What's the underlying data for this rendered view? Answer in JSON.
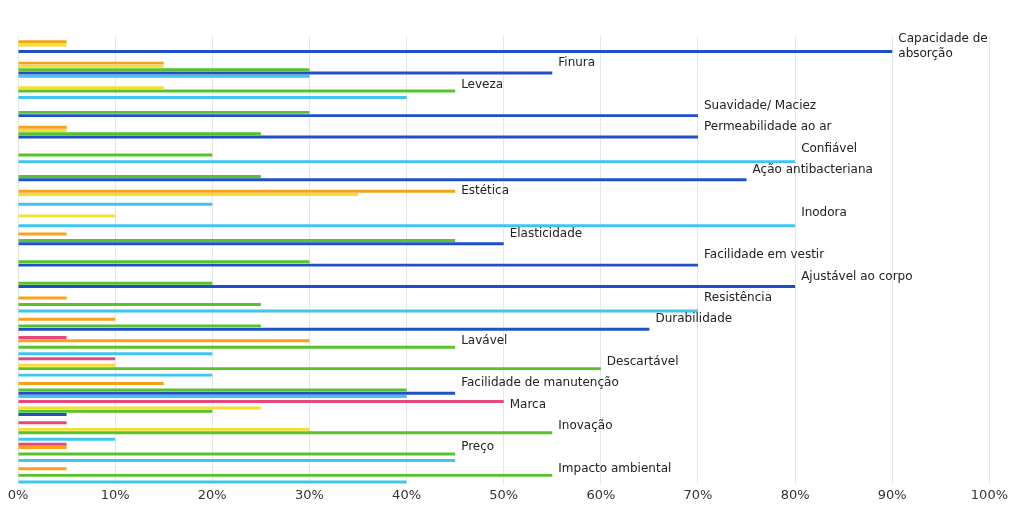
{
  "chart_data": {
    "type": "bar",
    "orientation": "horizontal",
    "categories": [
      "Capacidade de absorção",
      "Finura",
      "Leveza",
      "Suavidade/ Maciez",
      "Permeabilidade ao ar",
      "Confiável",
      "Ação antibacteriana",
      "Estética",
      "Inodora",
      "Elasticidade",
      "Facilidade em vestir",
      "Ajustável ao corpo",
      "Resistência",
      "Durabilidade",
      "Lavável",
      "Descartável",
      "Facilidade de manutenção",
      "Marca",
      "Inovação",
      "Preço",
      "Impacto ambiental"
    ],
    "series": [
      {
        "color": "#e8467c",
        "values": [
          null,
          null,
          null,
          null,
          null,
          null,
          null,
          null,
          null,
          null,
          null,
          null,
          null,
          null,
          5,
          10,
          null,
          50,
          5,
          5,
          null
        ]
      },
      {
        "color": "#f7a11a",
        "values": [
          5,
          15,
          null,
          null,
          5,
          null,
          null,
          45,
          null,
          5,
          null,
          null,
          5,
          10,
          30,
          null,
          15,
          null,
          null,
          5,
          5
        ]
      },
      {
        "color": "#f2e030",
        "values": [
          5,
          15,
          15,
          null,
          5,
          null,
          null,
          35,
          10,
          null,
          null,
          null,
          null,
          null,
          null,
          10,
          null,
          25,
          30,
          null,
          null
        ]
      },
      {
        "color": "#57c22b",
        "values": [
          null,
          30,
          45,
          30,
          25,
          20,
          25,
          null,
          null,
          45,
          30,
          20,
          25,
          25,
          45,
          60,
          40,
          20,
          55,
          45,
          55
        ]
      },
      {
        "color": "#1e50c8",
        "values": [
          90,
          55,
          null,
          70,
          70,
          null,
          75,
          null,
          null,
          50,
          70,
          80,
          null,
          65,
          null,
          null,
          45,
          5,
          null,
          null,
          null
        ]
      },
      {
        "color": "#3ec6f0",
        "values": [
          null,
          30,
          40,
          null,
          null,
          80,
          null,
          20,
          80,
          null,
          null,
          null,
          70,
          null,
          20,
          20,
          40,
          null,
          10,
          45,
          40
        ]
      }
    ],
    "xlim": [
      0,
      100
    ],
    "xticks": [
      {
        "value": 0,
        "label": "0%"
      },
      {
        "value": 10,
        "label": "10%"
      },
      {
        "value": 20,
        "label": "20%"
      },
      {
        "value": 30,
        "label": "30%"
      },
      {
        "value": 40,
        "label": "40%"
      },
      {
        "value": 50,
        "label": "50%"
      },
      {
        "value": 60,
        "label": "60%"
      },
      {
        "value": 70,
        "label": "70%"
      },
      {
        "value": 80,
        "label": "80%"
      },
      {
        "value": 90,
        "label": "90%"
      },
      {
        "value": 100,
        "label": "100%"
      }
    ],
    "grid": "x",
    "tick_labels": "x",
    "legend": false
  }
}
